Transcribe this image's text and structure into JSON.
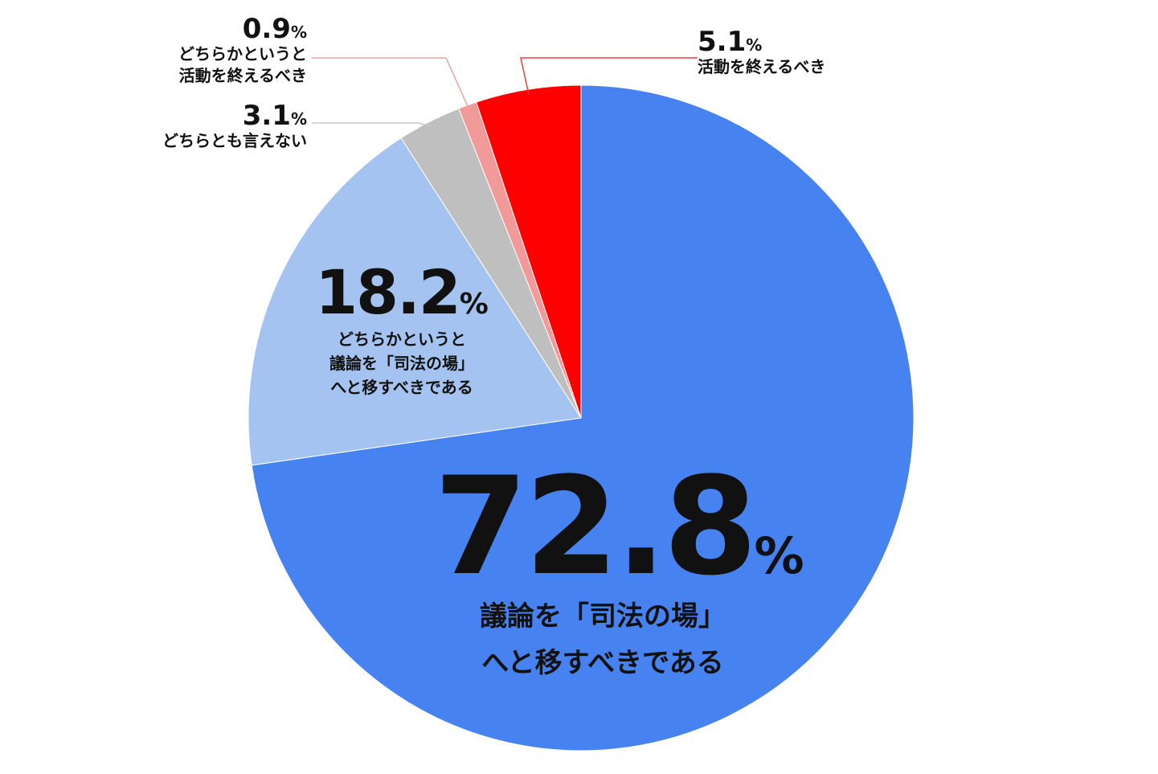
{
  "chart_data": {
    "type": "pie",
    "start_angle_deg": 0,
    "direction": "clockwise",
    "slices": [
      {
        "label": "議論を「司法の場」へと移すべきである",
        "value": 72.8,
        "value_label": "72.8",
        "unit": "%",
        "color": "#4682f0",
        "text_lines": [
          "議論を「司法の場」",
          "へと移すべきである"
        ]
      },
      {
        "label": "どちらかというと議論を「司法の場」へと移すべきである",
        "value": 18.2,
        "value_label": "18.2",
        "unit": "%",
        "color": "#a5c3f0",
        "text_lines": [
          "どちらかというと",
          "議論を「司法の場」",
          "へと移すべきである"
        ]
      },
      {
        "label": "どちらとも言えない",
        "value": 3.1,
        "value_label": "3.1",
        "unit": "%",
        "color": "#bfbfbf",
        "text_lines": [
          "どちらとも言えない"
        ]
      },
      {
        "label": "どちらかというと活動を終えるべき",
        "value": 0.9,
        "value_label": "0.9",
        "unit": "%",
        "color": "#f29a9a",
        "text_lines": [
          "どちらかというと",
          "活動を終えるべき"
        ]
      },
      {
        "label": "活動を終えるべき",
        "value": 5.1,
        "value_label": "5.1",
        "unit": "%",
        "color": "#ff0000",
        "text_lines": [
          "活動を終えるべき"
        ]
      }
    ],
    "leader_line_colors": {
      "5.1": "#e04040",
      "0.9": "#f0a0a0",
      "3.1": "#c8c8c8"
    }
  }
}
